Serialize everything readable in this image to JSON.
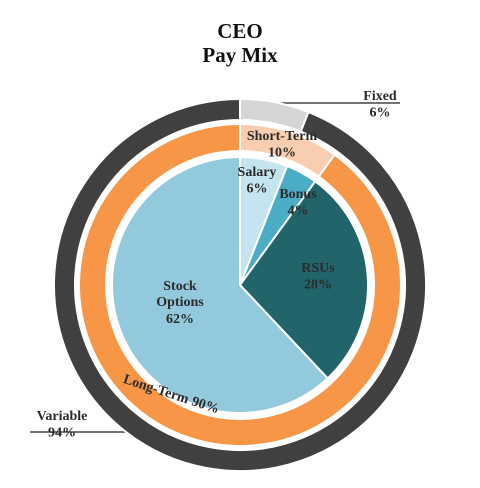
{
  "chart_data": {
    "type": "nested-pie",
    "title": "CEO\nPay Mix",
    "rings": [
      {
        "categories": [
          "Salary",
          "Bonus",
          "RSUs",
          "Stock\nOptions"
        ],
        "values": [
          6,
          4,
          28,
          62
        ],
        "value_labels": [
          "6%",
          "4%",
          "28%",
          "62%"
        ],
        "colors": [
          "#c4e5f0",
          "#4bacc6",
          "#21656b",
          "#93c9dd"
        ]
      },
      {
        "categories": [
          "Short-Term",
          "Long-Term"
        ],
        "values": [
          10,
          90
        ],
        "value_labels": [
          "10%",
          "90%"
        ],
        "colors": [
          "#f9cdaf",
          "#f79646"
        ]
      },
      {
        "categories": [
          "Fixed",
          "Variable"
        ],
        "values": [
          6,
          94
        ],
        "value_labels": [
          "6%",
          "94%"
        ],
        "colors": [
          "#d5d5d5",
          "#404040"
        ]
      }
    ]
  }
}
